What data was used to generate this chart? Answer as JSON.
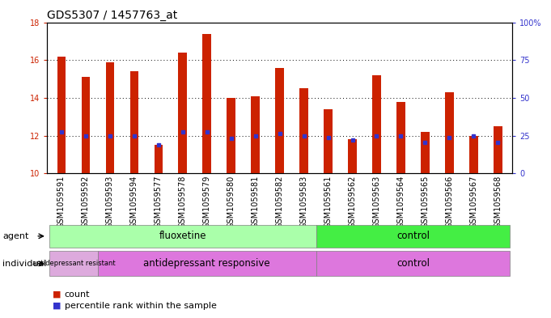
{
  "title": "GDS5307 / 1457763_at",
  "samples": [
    "GSM1059591",
    "GSM1059592",
    "GSM1059593",
    "GSM1059594",
    "GSM1059577",
    "GSM1059578",
    "GSM1059579",
    "GSM1059580",
    "GSM1059581",
    "GSM1059582",
    "GSM1059583",
    "GSM1059561",
    "GSM1059562",
    "GSM1059563",
    "GSM1059564",
    "GSM1059565",
    "GSM1059566",
    "GSM1059567",
    "GSM1059568"
  ],
  "count_values": [
    16.2,
    15.1,
    15.9,
    15.4,
    11.5,
    16.4,
    17.4,
    14.0,
    14.1,
    15.6,
    14.5,
    13.4,
    11.8,
    15.2,
    13.8,
    12.2,
    14.3,
    12.0,
    12.5
  ],
  "percentile_values": [
    12.2,
    12.0,
    12.0,
    12.0,
    11.5,
    12.2,
    12.2,
    11.85,
    12.0,
    12.1,
    12.0,
    11.9,
    11.75,
    12.0,
    12.0,
    11.65,
    11.9,
    12.0,
    11.65
  ],
  "ylim_left": [
    10,
    18
  ],
  "ylim_right": [
    0,
    100
  ],
  "bar_color": "#cc2200",
  "marker_color": "#3333cc",
  "plot_bg": "#ffffff",
  "tick_area_bg": "#cccccc",
  "agent_fluoxetine_color": "#aaffaa",
  "agent_control_color": "#44ee44",
  "indiv_resistant_color": "#ddaadd",
  "indiv_responsive_color": "#dd77dd",
  "indiv_control_color": "#dd77dd",
  "ylabel_left_color": "#cc2200",
  "ylabel_right_color": "#3333cc",
  "title_fontsize": 10,
  "tick_fontsize": 7,
  "label_fontsize": 8.5,
  "legend_fontsize": 8,
  "n_fluoxetine": 11,
  "n_samples": 19,
  "n_resistant": 2,
  "n_responsive": 9
}
